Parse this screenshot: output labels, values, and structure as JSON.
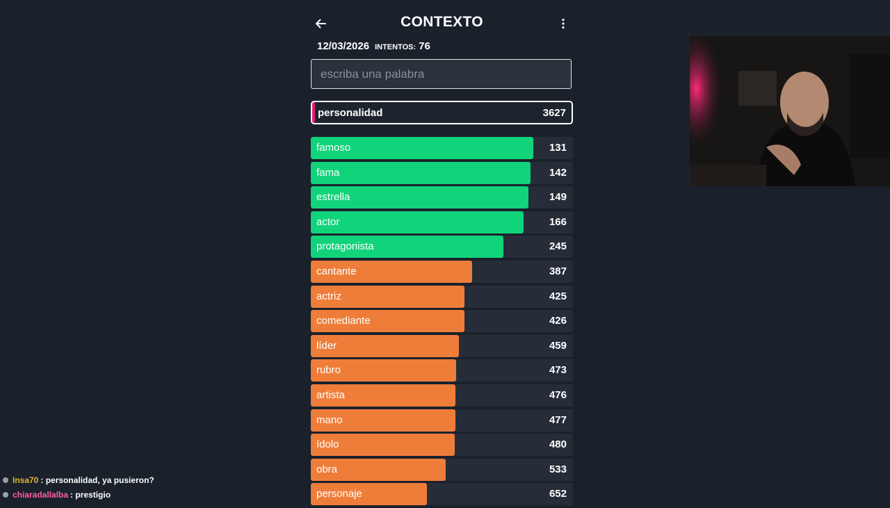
{
  "header": {
    "title": "CONTEXTO"
  },
  "meta": {
    "date": "12/03/2026",
    "attempts_label": "INTENTOS:",
    "attempts_value": "76"
  },
  "search": {
    "placeholder": "escriba una palabra",
    "value": ""
  },
  "current_guess": {
    "word": "personalidad",
    "rank": "3627",
    "marker_color": "#e8197d"
  },
  "colors": {
    "green": "#11d37a",
    "orange": "#ef7d3a",
    "track": "#262d38",
    "background": "#1a212b"
  },
  "guesses": [
    {
      "word": "famoso",
      "rank": "131",
      "color": "green",
      "fill": 0.848
    },
    {
      "word": "fama",
      "rank": "142",
      "color": "green",
      "fill": 0.838
    },
    {
      "word": "estrella",
      "rank": "149",
      "color": "green",
      "fill": 0.83
    },
    {
      "word": "actor",
      "rank": "166",
      "color": "green",
      "fill": 0.812
    },
    {
      "word": "protagonista",
      "rank": "245",
      "color": "green",
      "fill": 0.735
    },
    {
      "word": "cantante",
      "rank": "387",
      "color": "orange",
      "fill": 0.616
    },
    {
      "word": "actriz",
      "rank": "425",
      "color": "orange",
      "fill": 0.587
    },
    {
      "word": "comediante",
      "rank": "426",
      "color": "orange",
      "fill": 0.587
    },
    {
      "word": "líder",
      "rank": "459",
      "color": "orange",
      "fill": 0.564
    },
    {
      "word": "rubro",
      "rank": "473",
      "color": "orange",
      "fill": 0.554
    },
    {
      "word": "artista",
      "rank": "476",
      "color": "orange",
      "fill": 0.552
    },
    {
      "word": "mano",
      "rank": "477",
      "color": "orange",
      "fill": 0.552
    },
    {
      "word": "ídolo",
      "rank": "480",
      "color": "orange",
      "fill": 0.549
    },
    {
      "word": "obra",
      "rank": "533",
      "color": "orange",
      "fill": 0.515
    },
    {
      "word": "personaje",
      "rank": "652",
      "color": "orange",
      "fill": 0.443
    }
  ],
  "chat": [
    {
      "user": "Insa70",
      "user_color": "#e3b43c",
      "message": ": personalidad, ya pusieron?"
    },
    {
      "user": "chiaradallalba",
      "user_color": "#ff5ea0",
      "message": ": prestigio"
    }
  ]
}
